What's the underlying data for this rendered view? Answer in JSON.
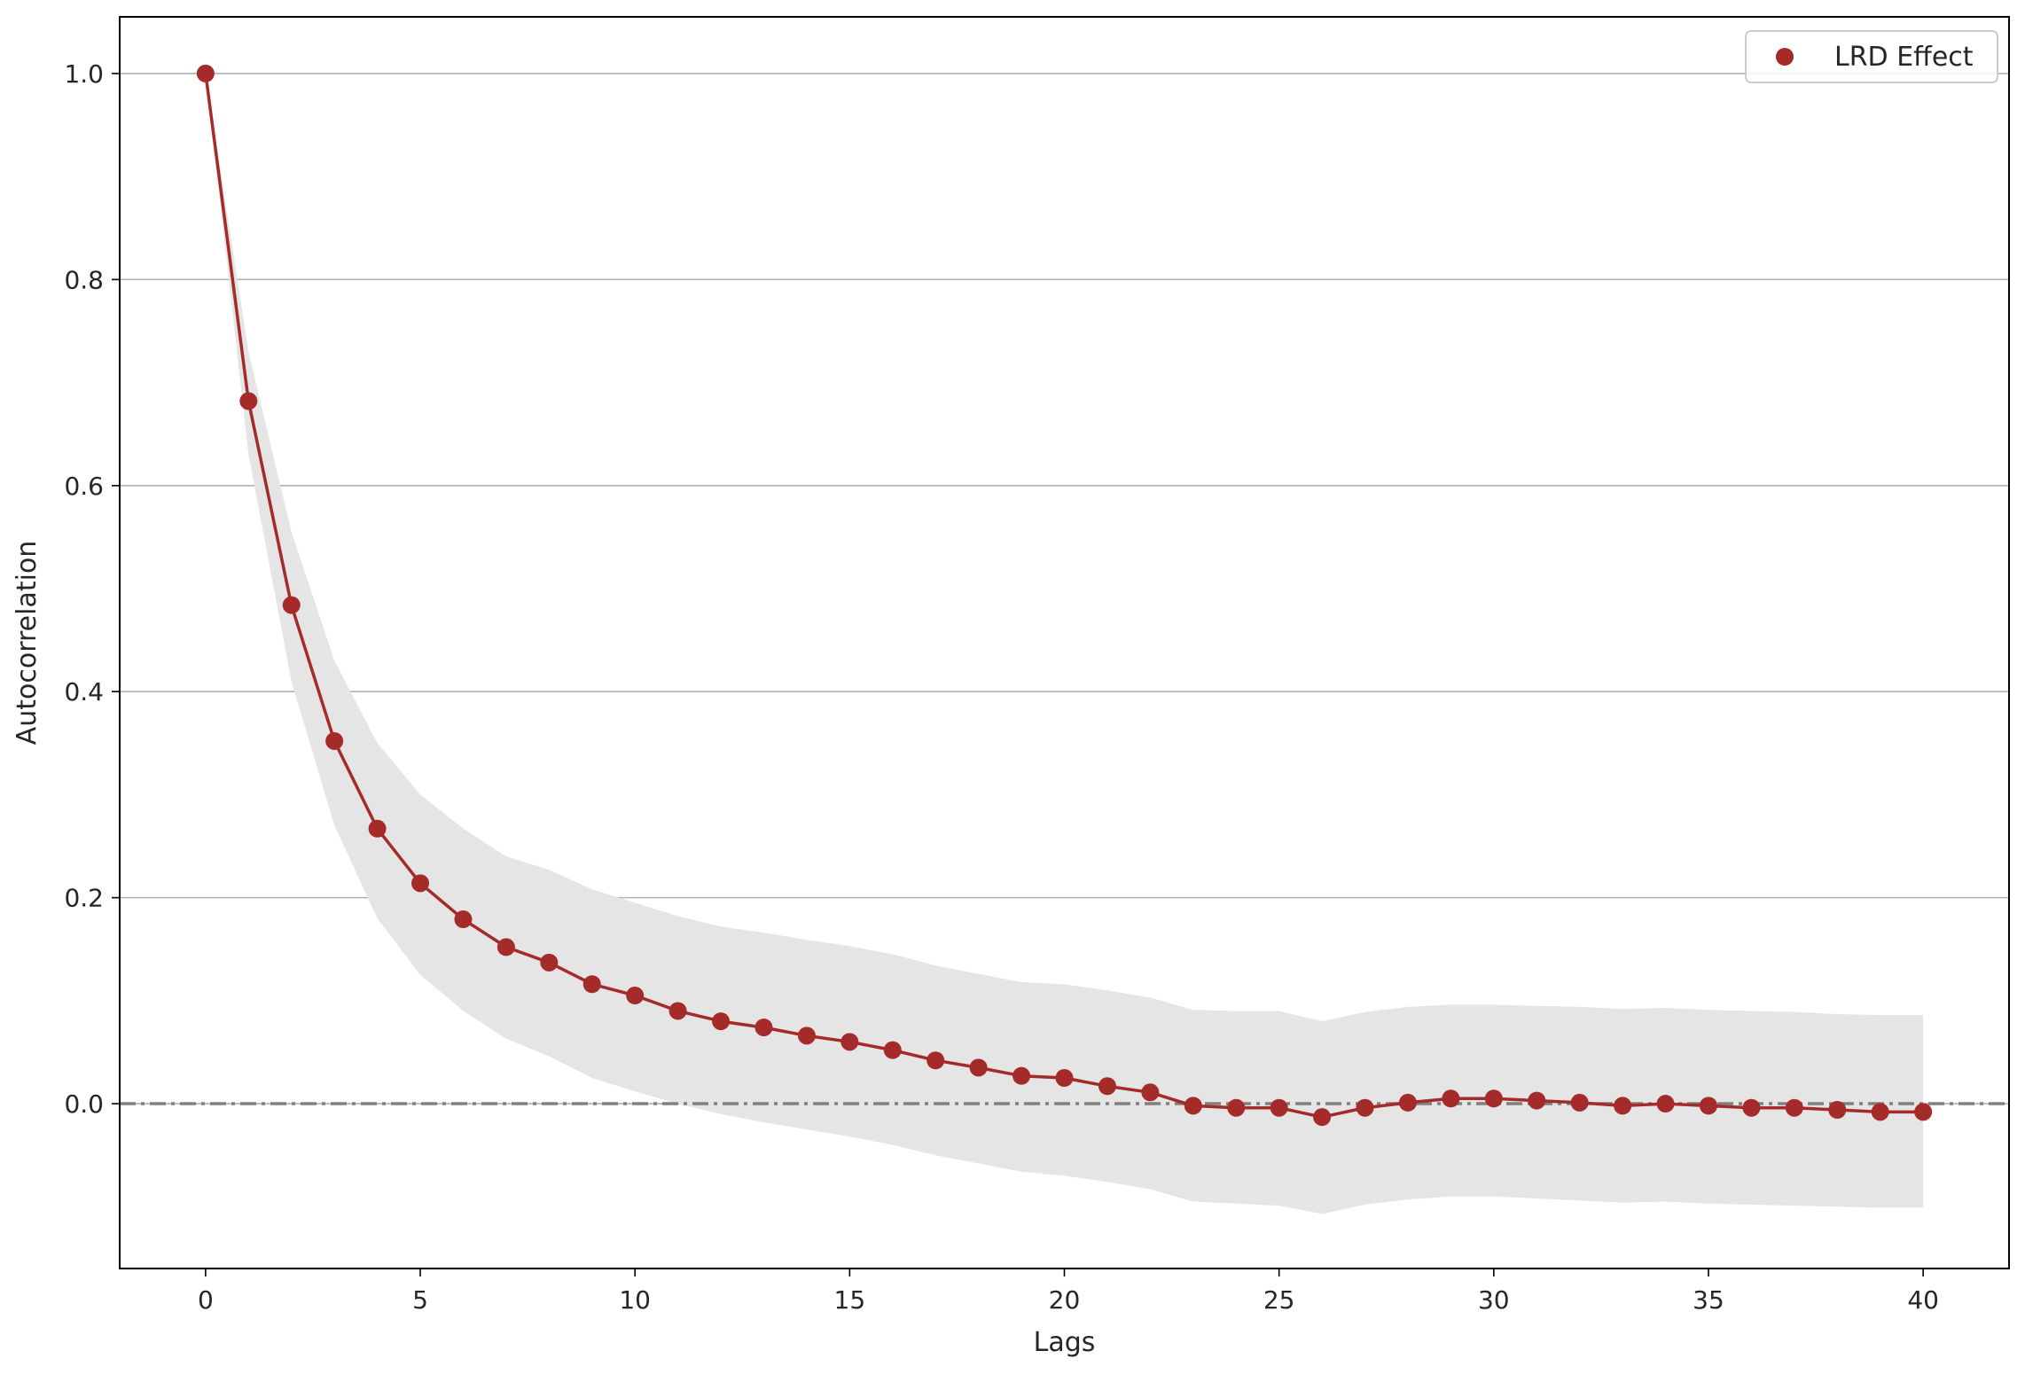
{
  "chart_data": {
    "type": "line",
    "title": "",
    "xlabel": "Lags",
    "ylabel": "Autocorrelation",
    "xlim": [
      -2,
      42
    ],
    "ylim": [
      -0.16,
      1.055
    ],
    "xticks": [
      0,
      5,
      10,
      15,
      20,
      25,
      30,
      35,
      40
    ],
    "xtick_labels": [
      "0",
      "5",
      "10",
      "15",
      "20",
      "25",
      "30",
      "35",
      "40"
    ],
    "yticks": [
      0.0,
      0.2,
      0.4,
      0.6,
      0.8,
      1.0
    ],
    "ytick_labels": [
      "0.0",
      "0.2",
      "0.4",
      "0.6",
      "0.8",
      "1.0"
    ],
    "grid": "horizontal",
    "legend_position": "top-right",
    "reference_line": {
      "y": 0.0,
      "style": "dash-dot",
      "color": "#808080"
    },
    "series": [
      {
        "name": "LRD Effect",
        "color": "#a52a2a",
        "marker": "circle",
        "x": [
          0,
          1,
          2,
          3,
          4,
          5,
          6,
          7,
          8,
          9,
          10,
          11,
          12,
          13,
          14,
          15,
          16,
          17,
          18,
          19,
          20,
          21,
          22,
          23,
          24,
          25,
          26,
          27,
          28,
          29,
          30,
          31,
          32,
          33,
          34,
          35,
          36,
          37,
          38,
          39,
          40
        ],
        "values": [
          1.0,
          0.682,
          0.484,
          0.352,
          0.267,
          0.214,
          0.179,
          0.152,
          0.137,
          0.116,
          0.105,
          0.09,
          0.08,
          0.074,
          0.066,
          0.06,
          0.052,
          0.042,
          0.035,
          0.027,
          0.025,
          0.017,
          0.011,
          -0.002,
          -0.004,
          -0.004,
          -0.013,
          -0.004,
          0.001,
          0.005,
          0.005,
          0.003,
          0.001,
          -0.002,
          0.0,
          -0.002,
          -0.004,
          -0.004,
          -0.006,
          -0.008,
          -0.008
        ]
      }
    ],
    "confidence_band": {
      "color": "#e5e5e5",
      "upper": [
        1.0,
        0.73,
        0.555,
        0.43,
        0.35,
        0.3,
        0.267,
        0.24,
        0.227,
        0.208,
        0.195,
        0.182,
        0.172,
        0.166,
        0.159,
        0.153,
        0.145,
        0.134,
        0.126,
        0.118,
        0.116,
        0.11,
        0.103,
        0.091,
        0.09,
        0.09,
        0.08,
        0.089,
        0.094,
        0.096,
        0.096,
        0.095,
        0.094,
        0.092,
        0.093,
        0.091,
        0.09,
        0.089,
        0.087,
        0.086,
        0.086
      ],
      "lower": [
        1.0,
        0.63,
        0.41,
        0.27,
        0.18,
        0.125,
        0.09,
        0.063,
        0.046,
        0.025,
        0.012,
        0.0,
        -0.01,
        -0.018,
        -0.025,
        -0.032,
        -0.04,
        -0.05,
        -0.058,
        -0.066,
        -0.07,
        -0.076,
        -0.083,
        -0.095,
        -0.097,
        -0.099,
        -0.107,
        -0.098,
        -0.093,
        -0.09,
        -0.09,
        -0.092,
        -0.094,
        -0.096,
        -0.095,
        -0.097,
        -0.098,
        -0.099,
        -0.1,
        -0.101,
        -0.101
      ]
    }
  }
}
